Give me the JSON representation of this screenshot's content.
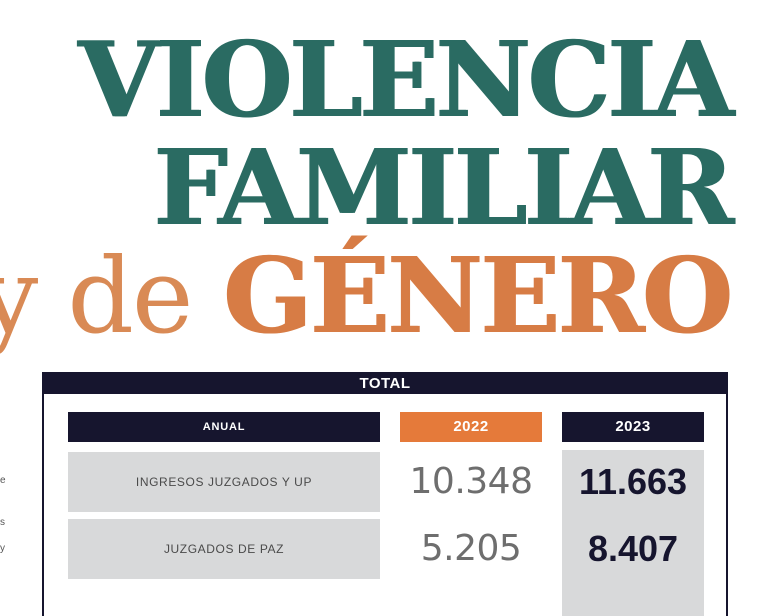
{
  "headline": {
    "line1": "VIOLENCIA",
    "line2": "FAMILIAR",
    "line3_light": "y de ",
    "line3_bold": "GÉNERO"
  },
  "side_fragments": [
    "e",
    "s",
    "y"
  ],
  "table": {
    "title": "TOTAL",
    "headers": {
      "label_col": "ANUAL",
      "col_2022": "2022",
      "col_2023": "2023"
    },
    "rows": [
      {
        "label": "INGRESOS JUZGADOS Y UP",
        "v2022": "10.348",
        "v2023": "11.663"
      },
      {
        "label": "JUZGADOS DE PAZ",
        "v2022": "5.205",
        "v2023": "8.407"
      }
    ]
  },
  "colors": {
    "teal": "#2a6b62",
    "orange": "#d77c45",
    "navy": "#16152e",
    "header_orange": "#e57a3a",
    "row_gray": "#d8d9da"
  }
}
